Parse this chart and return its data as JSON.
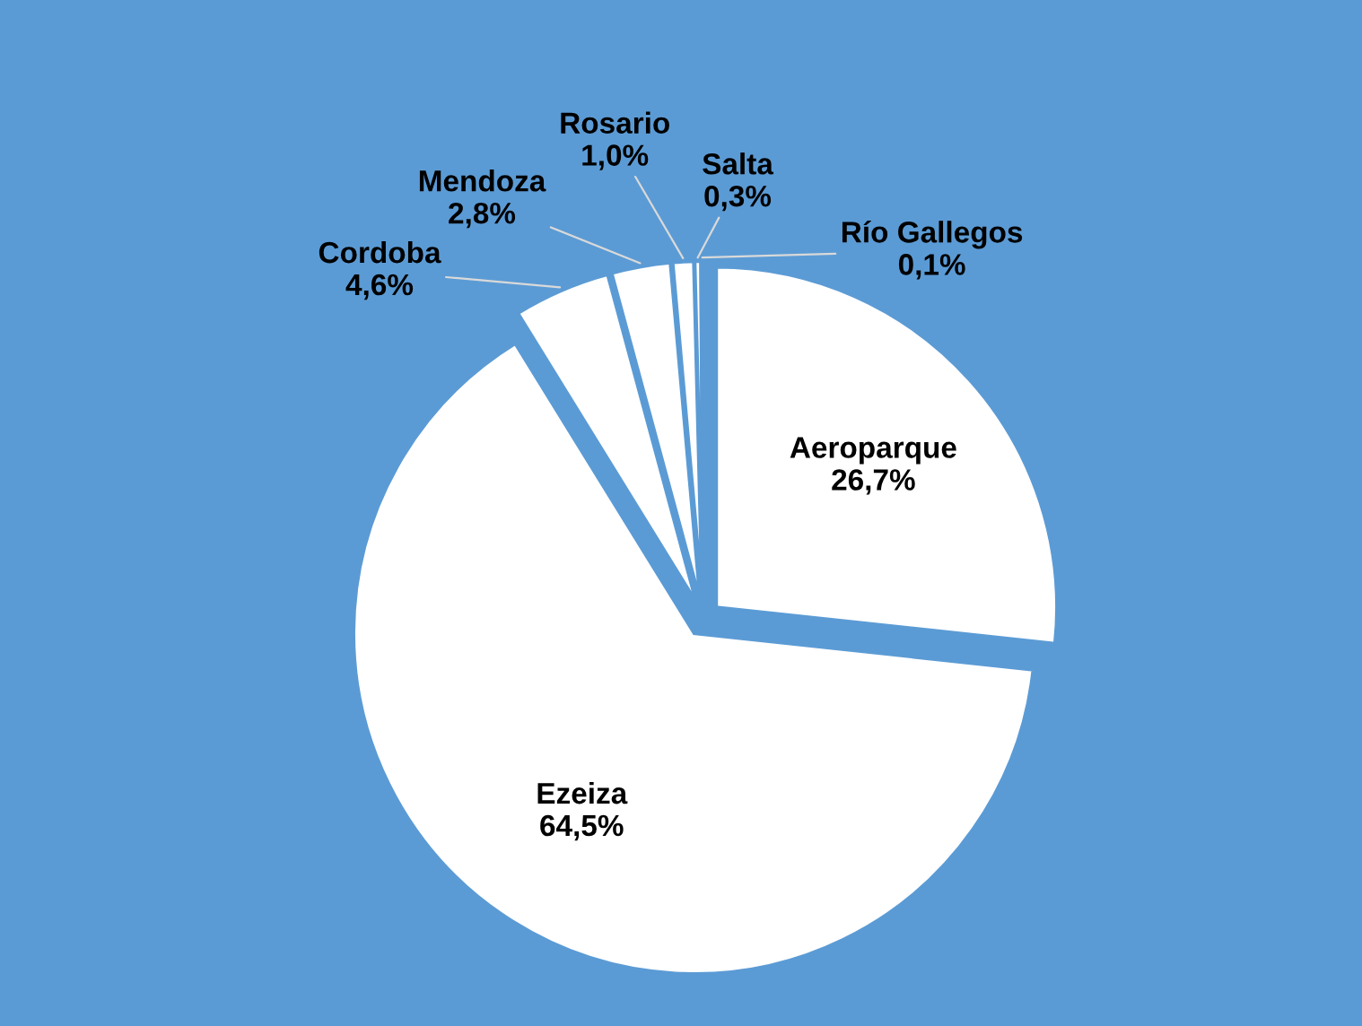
{
  "chart_data": {
    "type": "pie",
    "categories": [
      "Aeroparque",
      "Ezeiza",
      "Cordoba",
      "Mendoza",
      "Rosario",
      "Salta",
      "Río Gallegos"
    ],
    "values": [
      26.7,
      64.5,
      4.6,
      2.8,
      1.0,
      0.3,
      0.1
    ],
    "value_labels": [
      "26,7%",
      "64,5%",
      "4,6%",
      "2,8%",
      "1,0%",
      "0,3%",
      "0,1%"
    ],
    "colors": [
      "#ffffff",
      "#ffffff",
      "#ffffff",
      "#ffffff",
      "#ffffff",
      "#ffffff",
      "#ffffff"
    ],
    "legend": false
  }
}
